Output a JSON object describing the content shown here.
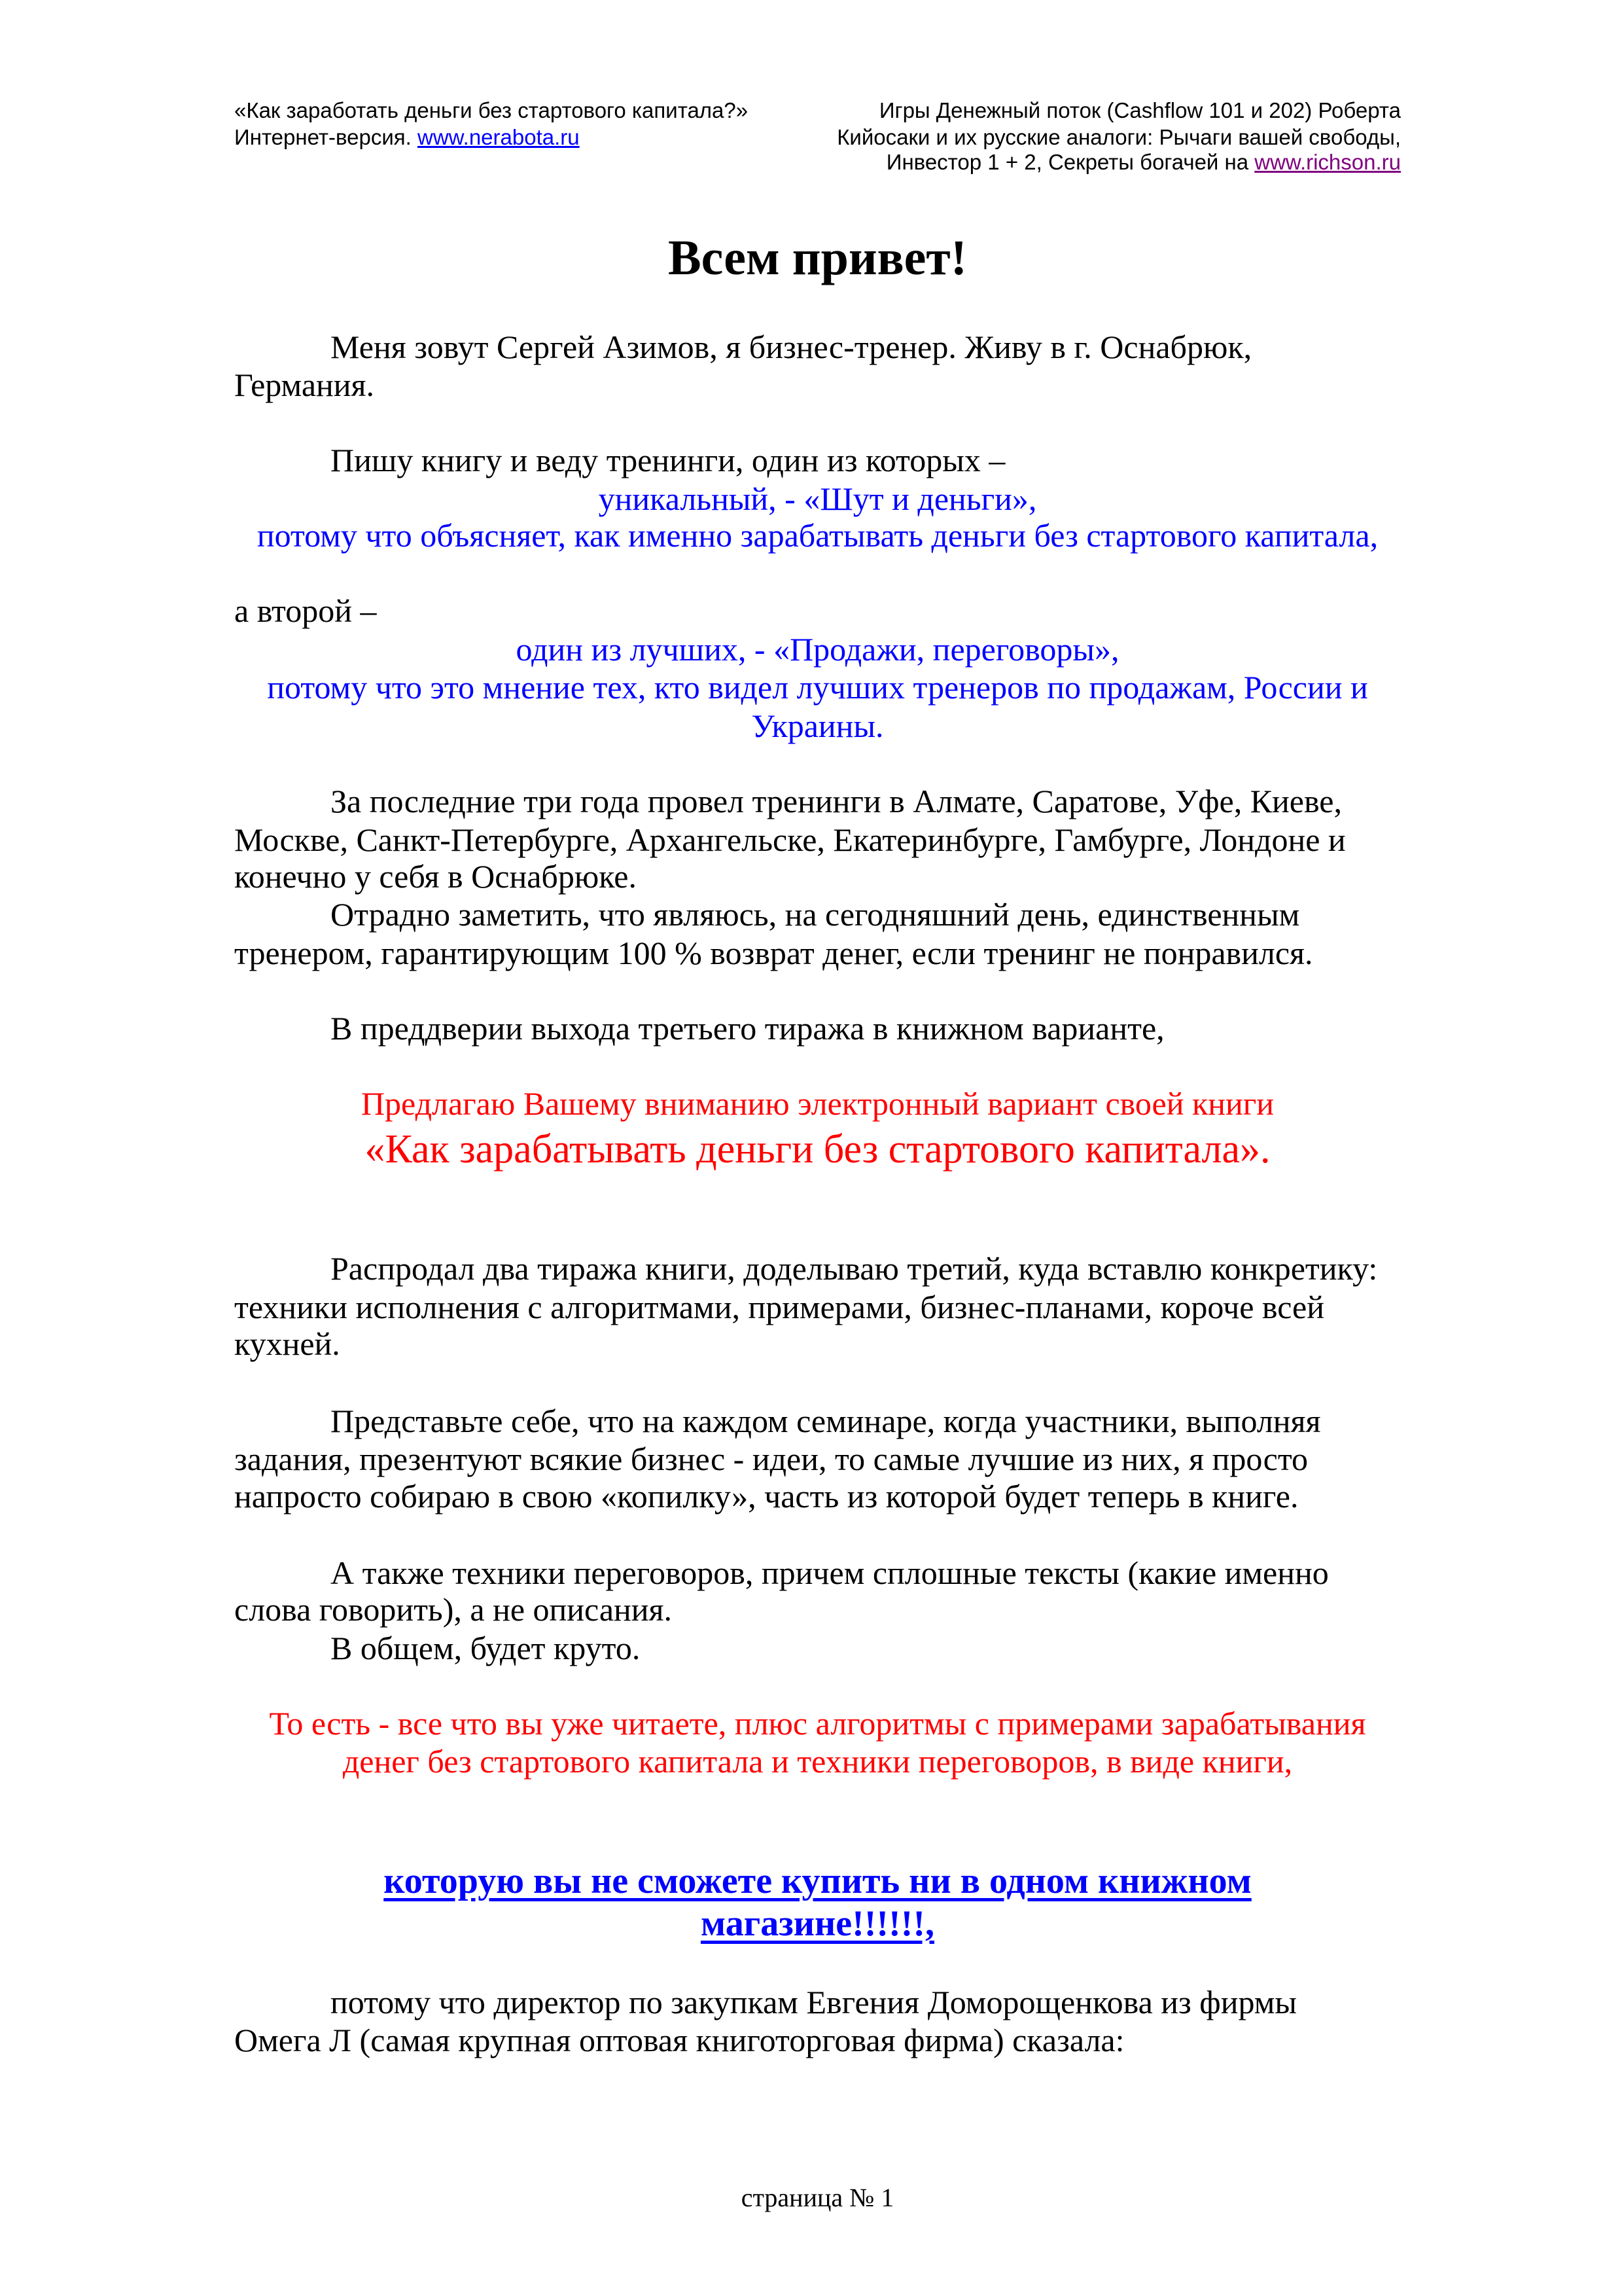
{
  "header": {
    "left_line1": "«Как заработать деньги без стартового капитала?»",
    "left_line2_prefix": "Интернет-версия. ",
    "left_link": "www.nerabota.ru",
    "right_line1": "Игры Денежный поток (Cashflow 101 и 202) Роберта",
    "right_line2": "Кийосаки и их русские аналоги: Рычаги вашей свободы,",
    "right_line3_prefix": "Инвестор 1 + 2, Секреты богачей на ",
    "right_link": "www.richson.ru"
  },
  "title": "Всем привет!",
  "lines": [
    "Меня зовут Сергей Азимов, я бизнес-тренер. Живу в г. Оснабрюк,",
    "Германия.",
    "Пишу книгу и веду тренинги, один из которых –",
    "уникальный, - «Шут и деньги»,",
    "потому что объясняет, как именно зарабатывать деньги без стартового капитала,",
    "а второй –",
    "один из лучших, - «Продажи, переговоры»,",
    "потому что это мнение тех, кто видел лучших тренеров по продажам, России и",
    "Украины.",
    "За последние три года провел тренинги в Алмате, Саратове, Уфе, Киеве,",
    "Москве, Санкт-Петербурге, Архангельске, Екатеринбурге, Гамбурге, Лондоне и",
    "конечно у себя в Оснабрюке.",
    "Отрадно заметить, что являюсь, на сегодняшний день, единственным",
    "тренером, гарантирующим 100 % возврат денег, если тренинг не понравился.",
    "В преддверии выхода третьего тиража в книжном варианте,",
    "Предлагаю Вашему вниманию электронный вариант своей книги",
    "«Как зарабатывать деньги без стартового капитала».",
    "Распродал два тиража книги, доделываю третий, куда вставлю конкретику:",
    "техники исполнения с алгоритмами, примерами, бизнес-планами, короче всей",
    "кухней.",
    "Представьте себе, что на каждом семинаре, когда участники, выполняя",
    "задания, презентуют всякие бизнес - идеи, то самые лучшие из них, я просто",
    "напросто собираю в свою «копилку», часть из которой будет теперь в книге.",
    "А также техники переговоров, причем сплошные тексты (какие именно",
    "слова говорить), а не описания.",
    "В общем, будет круто.",
    "То есть - все что вы уже читаете, плюс алгоритмы с примерами зарабатывания",
    "денег без стартового капитала и техники переговоров, в виде книги,",
    "которую вы не сможете купить ни в одном книжном",
    "магазине!!!!!!,",
    "потому что директор по закупкам Евгения Доморощенкова из фирмы",
    "Омега Л (самая крупная оптовая книготорговая фирма) сказала:"
  ],
  "footer": "страница № 1",
  "colors": {
    "blue": "#0000ff",
    "red": "#ff0000",
    "visited_link": "#800080"
  }
}
